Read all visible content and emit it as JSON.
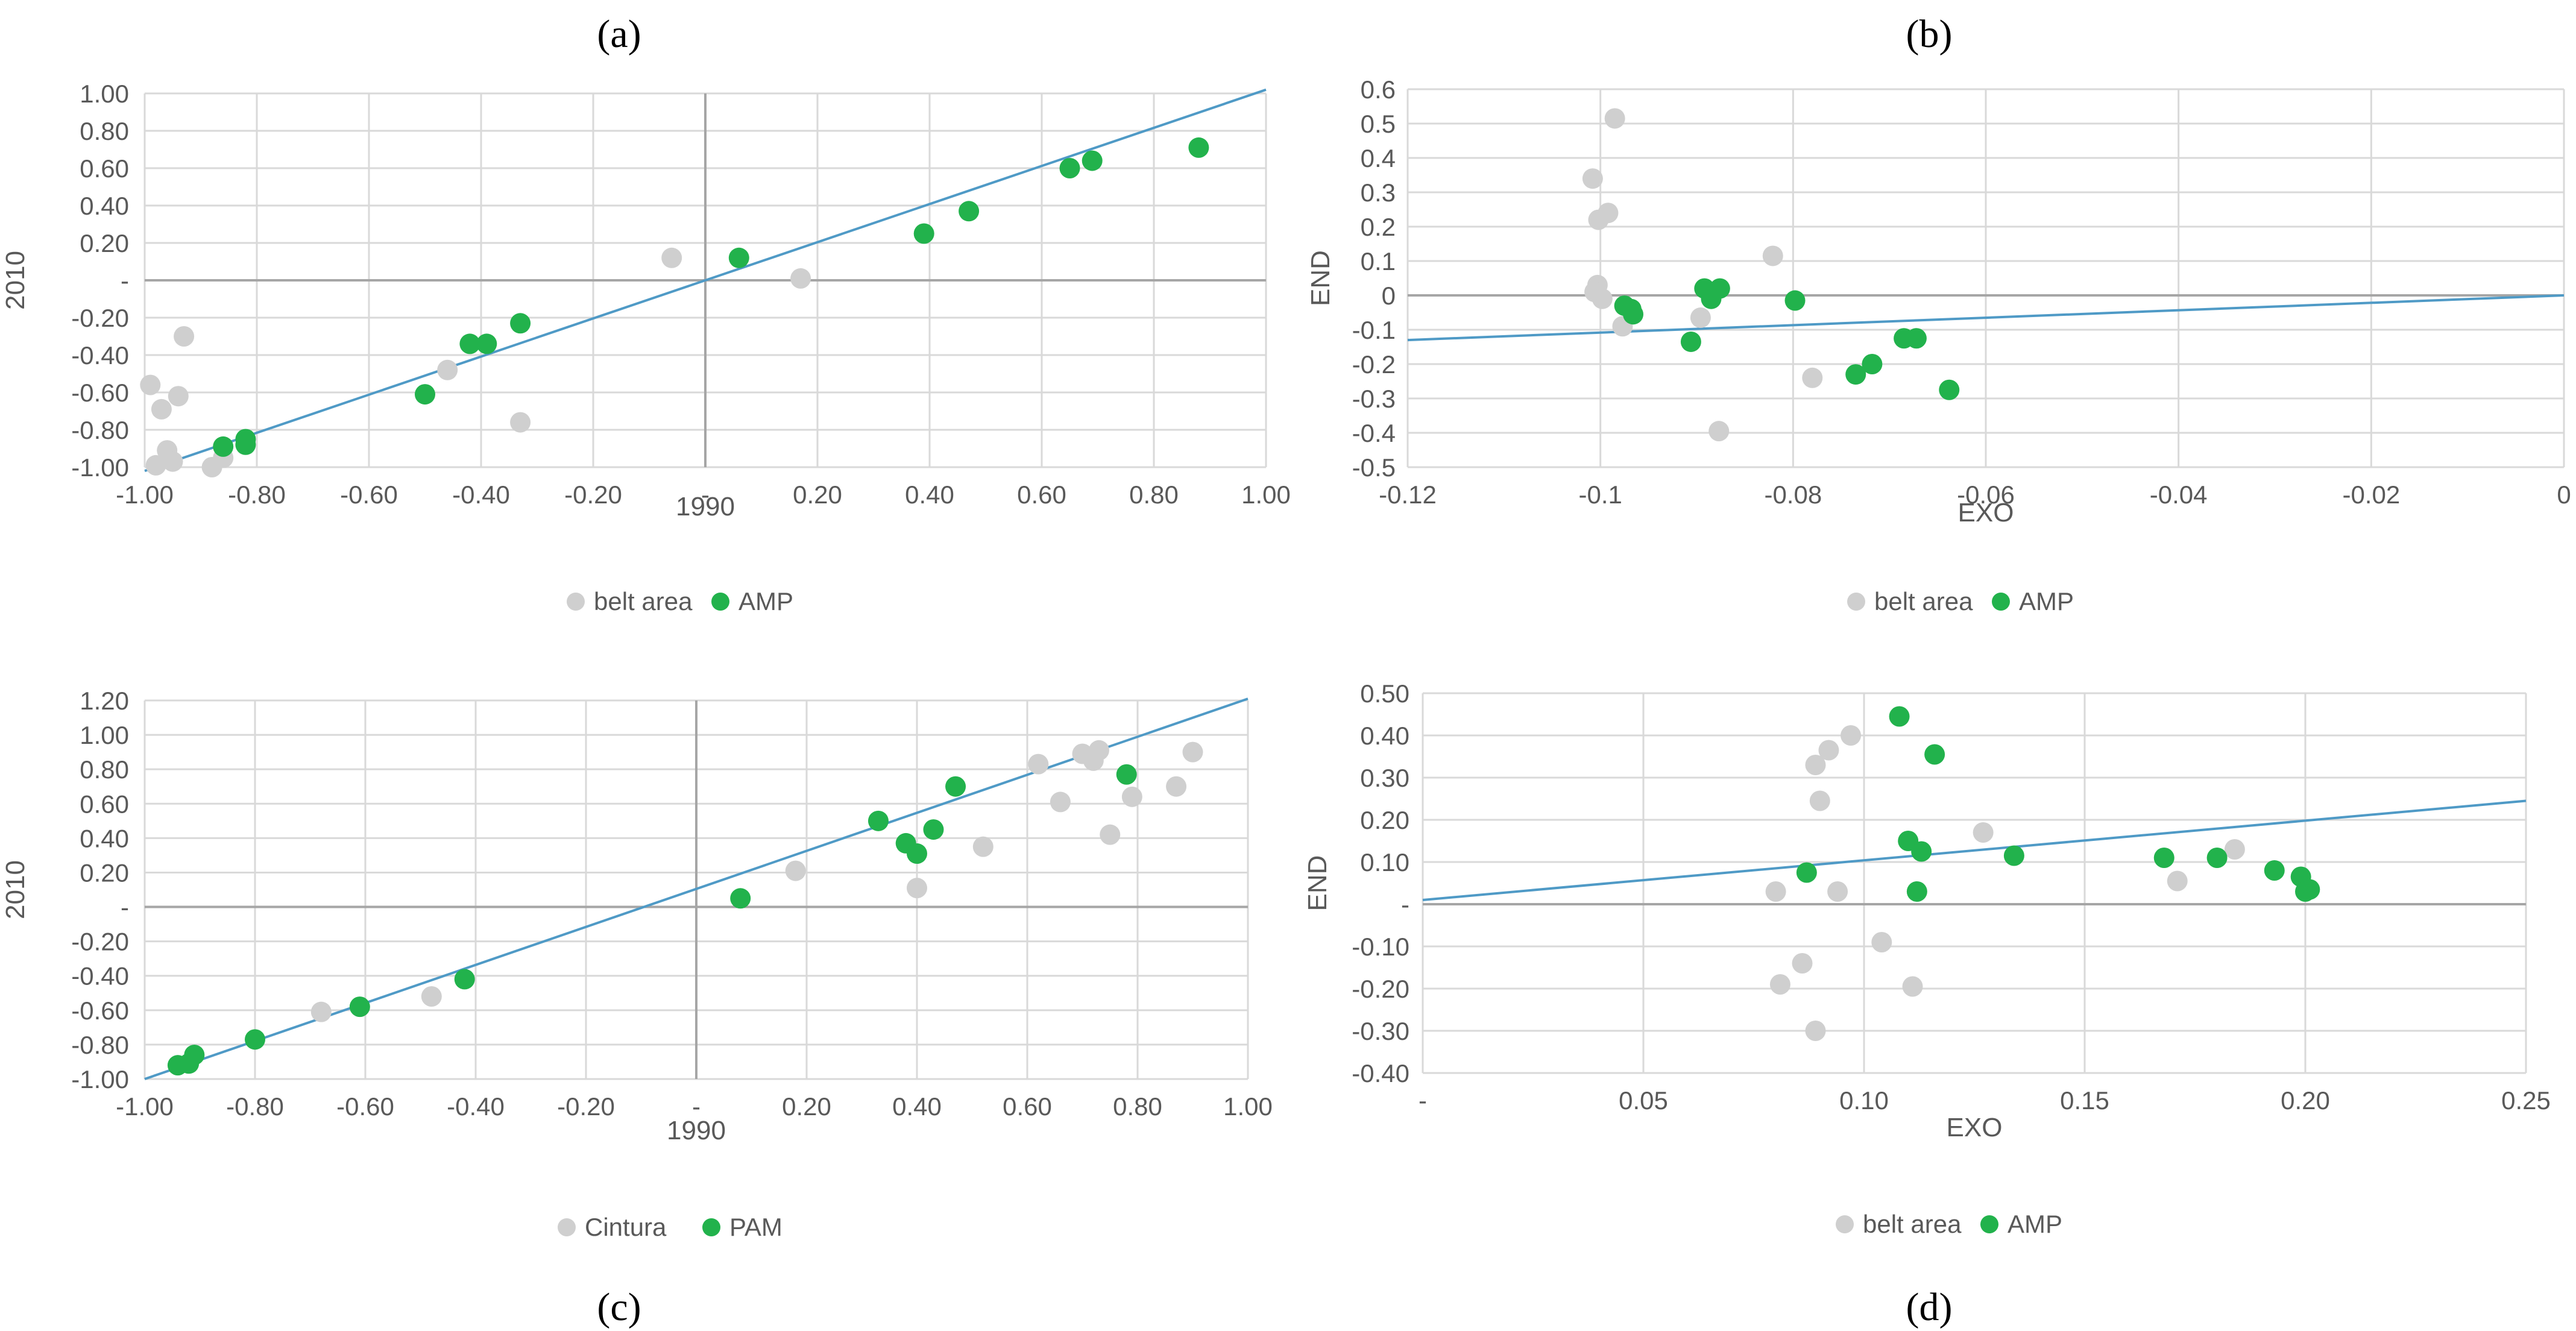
{
  "panel_labels": [
    "(a)",
    "(b)",
    "(c)",
    "(d)"
  ],
  "colors": {
    "grey_series": "#cfcfcf",
    "green_series": "#22b24c",
    "trend_line": "#4f9ac6",
    "grid": "#d9d9d9",
    "zero_axis": "#a6a6a6",
    "tick_text": "#595959"
  },
  "chart_data": [
    {
      "type": "scatter",
      "panel": "(a)",
      "xlabel": "1990",
      "ylabel": "2010",
      "xlim": [
        -1.0,
        1.0
      ],
      "ylim": [
        -1.0,
        1.0
      ],
      "x_ticks": [
        -1.0,
        -0.8,
        -0.6,
        -0.4,
        -0.2,
        0,
        0.2,
        0.4,
        0.6,
        0.8,
        1.0
      ],
      "x_tick_labels": [
        "-1.00",
        "-0.80",
        "-0.60",
        "-0.40",
        "-0.20",
        "-",
        "0.20",
        "0.40",
        "0.60",
        "0.80",
        "1.00"
      ],
      "y_ticks": [
        -1.0,
        -0.8,
        -0.6,
        -0.4,
        -0.2,
        0,
        0.2,
        0.4,
        0.6,
        0.8,
        1.0
      ],
      "y_tick_labels": [
        "-1.00",
        "-0.80",
        "-0.60",
        "-0.40",
        "-0.20",
        "-",
        "0.20",
        "0.40",
        "0.60",
        "0.80",
        "1.00"
      ],
      "grid": true,
      "trendline": {
        "from": [
          -1.0,
          -1.02
        ],
        "to": [
          1.0,
          1.02
        ]
      },
      "legend": [
        "belt area",
        "AMP"
      ],
      "series": [
        {
          "name": "belt area",
          "color": "grey",
          "points": [
            [
              -0.99,
              -0.56
            ],
            [
              -0.97,
              -0.69
            ],
            [
              -0.96,
              -0.91
            ],
            [
              -0.95,
              -0.97
            ],
            [
              -0.98,
              -0.99
            ],
            [
              -0.93,
              -0.3
            ],
            [
              -0.94,
              -0.62
            ],
            [
              -0.88,
              -1.0
            ],
            [
              -0.86,
              -0.95
            ],
            [
              -0.46,
              -0.48
            ],
            [
              -0.33,
              -0.76
            ],
            [
              -0.06,
              0.12
            ],
            [
              0.17,
              0.01
            ]
          ]
        },
        {
          "name": "AMP",
          "color": "green",
          "points": [
            [
              -0.86,
              -0.89
            ],
            [
              -0.82,
              -0.85
            ],
            [
              -0.82,
              -0.88
            ],
            [
              -0.5,
              -0.61
            ],
            [
              -0.42,
              -0.34
            ],
            [
              -0.39,
              -0.34
            ],
            [
              -0.33,
              -0.23
            ],
            [
              0.06,
              0.12
            ],
            [
              0.39,
              0.25
            ],
            [
              0.47,
              0.37
            ],
            [
              0.65,
              0.6
            ],
            [
              0.69,
              0.64
            ],
            [
              0.88,
              0.71
            ]
          ]
        }
      ]
    },
    {
      "type": "scatter",
      "panel": "(b)",
      "xlabel": "EXO",
      "ylabel": "END",
      "xlim": [
        -0.12,
        0
      ],
      "ylim": [
        -0.5,
        0.6
      ],
      "x_ticks": [
        -0.12,
        -0.1,
        -0.08,
        -0.06,
        -0.04,
        -0.02,
        0
      ],
      "x_tick_labels": [
        "-0.12",
        "-0.1",
        "-0.08",
        "-0.06",
        "-0.04",
        "-0.02",
        "0"
      ],
      "y_ticks": [
        -0.5,
        -0.4,
        -0.3,
        -0.2,
        -0.1,
        0,
        0.1,
        0.2,
        0.3,
        0.4,
        0.5,
        0.6
      ],
      "y_tick_labels": [
        "-0.5",
        "-0.4",
        "-0.3",
        "-0.2",
        "-0.1",
        "0",
        "0.1",
        "0.2",
        "0.3",
        "0.4",
        "0.5",
        "0.6"
      ],
      "grid": true,
      "trendline": {
        "from": [
          -0.12,
          -0.13
        ],
        "to": [
          0,
          0.0
        ]
      },
      "legend": [
        "belt area",
        "AMP"
      ],
      "series": [
        {
          "name": "belt area",
          "color": "grey",
          "points": [
            [
              -0.0985,
              0.515
            ],
            [
              -0.1008,
              0.34
            ],
            [
              -0.0992,
              0.24
            ],
            [
              -0.1002,
              0.22
            ],
            [
              -0.1003,
              0.03
            ],
            [
              -0.1006,
              0.01
            ],
            [
              -0.0998,
              -0.01
            ],
            [
              -0.0977,
              -0.09
            ],
            [
              -0.0896,
              -0.065
            ],
            [
              -0.0821,
              0.115
            ],
            [
              -0.078,
              -0.24
            ],
            [
              -0.0877,
              -0.395
            ]
          ]
        },
        {
          "name": "AMP",
          "color": "green",
          "points": [
            [
              -0.0975,
              -0.03
            ],
            [
              -0.0968,
              -0.04
            ],
            [
              -0.0966,
              -0.055
            ],
            [
              -0.0892,
              0.02
            ],
            [
              -0.0885,
              -0.01
            ],
            [
              -0.0876,
              0.02
            ],
            [
              -0.0906,
              -0.135
            ],
            [
              -0.0798,
              -0.015
            ],
            [
              -0.0735,
              -0.23
            ],
            [
              -0.0718,
              -0.2
            ],
            [
              -0.0685,
              -0.125
            ],
            [
              -0.0672,
              -0.125
            ],
            [
              -0.0638,
              -0.275
            ]
          ]
        }
      ]
    },
    {
      "type": "scatter",
      "panel": "(c)",
      "xlabel": "1990",
      "ylabel": "2010",
      "xlim": [
        -1.0,
        1.0
      ],
      "ylim": [
        -1.0,
        1.2
      ],
      "x_ticks": [
        -1.0,
        -0.8,
        -0.6,
        -0.4,
        -0.2,
        0,
        0.2,
        0.4,
        0.6,
        0.8,
        1.0
      ],
      "x_tick_labels": [
        "-1.00",
        "-0.80",
        "-0.60",
        "-0.40",
        "-0.20",
        "-",
        "0.20",
        "0.40",
        "0.60",
        "0.80",
        "1.00"
      ],
      "y_ticks": [
        -1.0,
        -0.8,
        -0.6,
        -0.4,
        -0.2,
        0,
        0.2,
        0.4,
        0.6,
        0.8,
        1.0,
        1.2
      ],
      "y_tick_labels": [
        "-1.00",
        "-0.80",
        "-0.60",
        "-0.40",
        "-0.20",
        "-",
        "0.20",
        "0.40",
        "0.60",
        "0.80",
        "1.00",
        "1.20"
      ],
      "grid": true,
      "trendline": {
        "from": [
          -1.0,
          -1.0
        ],
        "to": [
          1.0,
          1.21
        ]
      },
      "legend": [
        "Cintura",
        "PAM"
      ],
      "series": [
        {
          "name": "Cintura",
          "color": "grey",
          "points": [
            [
              -0.68,
              -0.61
            ],
            [
              -0.48,
              -0.52
            ],
            [
              0.18,
              0.21
            ],
            [
              0.4,
              0.11
            ],
            [
              0.52,
              0.35
            ],
            [
              0.62,
              0.83
            ],
            [
              0.66,
              0.61
            ],
            [
              0.7,
              0.89
            ],
            [
              0.72,
              0.85
            ],
            [
              0.73,
              0.91
            ],
            [
              0.75,
              0.42
            ],
            [
              0.79,
              0.64
            ],
            [
              0.87,
              0.7
            ],
            [
              0.9,
              0.9
            ]
          ]
        },
        {
          "name": "PAM",
          "color": "green",
          "points": [
            [
              -0.94,
              -0.92
            ],
            [
              -0.92,
              -0.91
            ],
            [
              -0.91,
              -0.86
            ],
            [
              -0.8,
              -0.77
            ],
            [
              -0.61,
              -0.58
            ],
            [
              -0.42,
              -0.42
            ],
            [
              0.08,
              0.05
            ],
            [
              0.33,
              0.5
            ],
            [
              0.38,
              0.37
            ],
            [
              0.4,
              0.31
            ],
            [
              0.43,
              0.45
            ],
            [
              0.47,
              0.7
            ],
            [
              0.78,
              0.77
            ]
          ]
        }
      ]
    },
    {
      "type": "scatter",
      "panel": "(d)",
      "xlabel": "EXO",
      "ylabel": "END",
      "xlim": [
        0,
        0.25
      ],
      "ylim": [
        -0.4,
        0.5
      ],
      "x_ticks": [
        0,
        0.05,
        0.1,
        0.15,
        0.2,
        0.25
      ],
      "x_tick_labels": [
        "-",
        "0.05",
        "0.10",
        "0.15",
        "0.20",
        "0.25"
      ],
      "y_ticks": [
        -0.4,
        -0.3,
        -0.2,
        -0.1,
        0,
        0.1,
        0.2,
        0.3,
        0.4,
        0.5
      ],
      "y_tick_labels": [
        "-0.40",
        "-0.30",
        "-0.20",
        "-0.10",
        "-",
        "0.10",
        "0.20",
        "0.30",
        "0.40",
        "0.50"
      ],
      "grid": true,
      "trendline": {
        "from": [
          0,
          0.01
        ],
        "to": [
          0.25,
          0.245
        ]
      },
      "legend": [
        "belt area",
        "AMP"
      ],
      "series": [
        {
          "name": "belt area",
          "color": "grey",
          "points": [
            [
              0.08,
              0.03
            ],
            [
              0.081,
              -0.19
            ],
            [
              0.086,
              -0.14
            ],
            [
              0.089,
              -0.3
            ],
            [
              0.089,
              0.33
            ],
            [
              0.09,
              0.245
            ],
            [
              0.092,
              0.365
            ],
            [
              0.094,
              0.03
            ],
            [
              0.097,
              0.4
            ],
            [
              0.104,
              -0.09
            ],
            [
              0.111,
              -0.195
            ],
            [
              0.127,
              0.17
            ],
            [
              0.171,
              0.055
            ],
            [
              0.184,
              0.13
            ]
          ]
        },
        {
          "name": "AMP",
          "color": "green",
          "points": [
            [
              0.087,
              0.075
            ],
            [
              0.108,
              0.445
            ],
            [
              0.11,
              0.15
            ],
            [
              0.112,
              0.03
            ],
            [
              0.113,
              0.125
            ],
            [
              0.116,
              0.355
            ],
            [
              0.134,
              0.115
            ],
            [
              0.168,
              0.11
            ],
            [
              0.18,
              0.11
            ],
            [
              0.193,
              0.08
            ],
            [
              0.199,
              0.065
            ],
            [
              0.2,
              0.03
            ],
            [
              0.201,
              0.035
            ]
          ]
        }
      ]
    }
  ]
}
